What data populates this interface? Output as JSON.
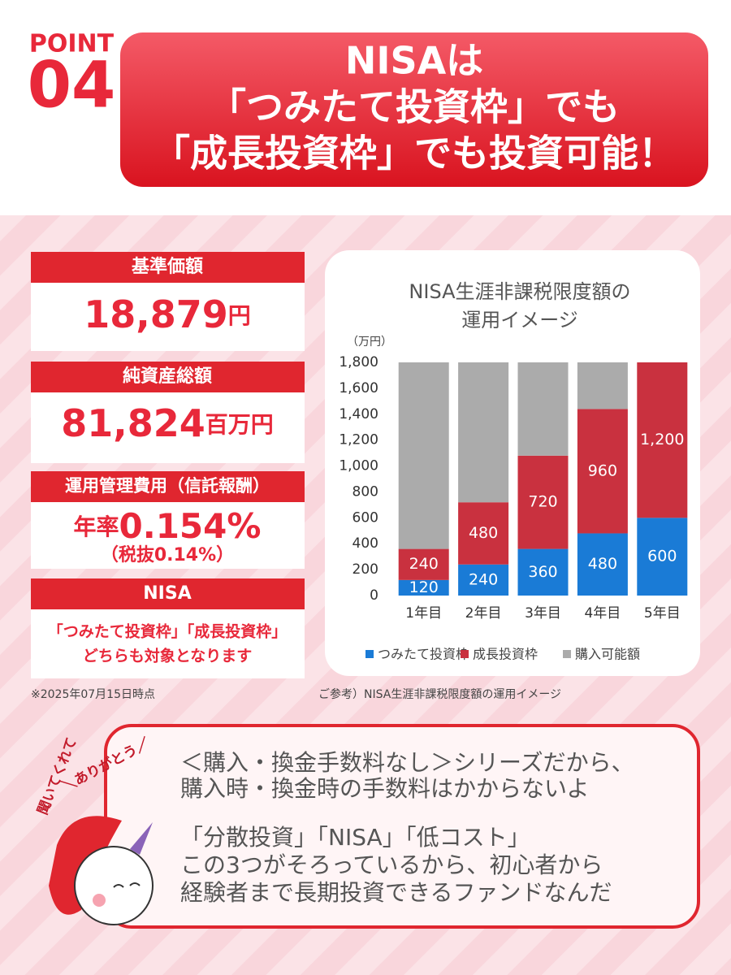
{
  "header": {
    "point": "POINT",
    "number": "04",
    "title": [
      "NISAは",
      "「つみたて投資枠」でも",
      "「成長投資枠」でも投資可能！"
    ]
  },
  "cards": [
    {
      "label": "基準価額",
      "value": "18,879",
      "unit": "円"
    },
    {
      "label": "純資産総額",
      "value": "81,824",
      "unit": "百万円"
    },
    {
      "label": "運用管理費用（信託報酬）",
      "value_prefix": "年率",
      "value": "0.154%",
      "sub": "（税抜0.14%）"
    },
    {
      "label": "NISA",
      "lines": [
        "「つみたて投資枠」「成長投資枠」",
        "どちらも対象となります"
      ]
    }
  ],
  "notes": {
    "date": "※2025年07月15日時点",
    "chart_source": "ご参考）NISA生涯非課税限度額の運用イメージ"
  },
  "chart_data": {
    "type": "bar",
    "stacked": true,
    "title": [
      "NISA生涯非課税限度額の",
      "運用イメージ"
    ],
    "unit_label": "（万円）",
    "categories": [
      "1年目",
      "2年目",
      "3年目",
      "4年目",
      "5年目"
    ],
    "series": [
      {
        "name": "つみたて投資枠",
        "color": "#1a7bd6",
        "values": [
          120,
          240,
          360,
          480,
          600
        ]
      },
      {
        "name": "成長投資枠",
        "color": "#c9313f",
        "values": [
          240,
          480,
          720,
          960,
          1200
        ],
        "value_labels": [
          "240",
          "480",
          "720",
          "960",
          "1,200"
        ]
      },
      {
        "name": "購入可能額",
        "color": "#ababab",
        "values": [
          1440,
          1080,
          720,
          360,
          0
        ]
      }
    ],
    "ylim": [
      0,
      1800
    ],
    "yticks": [
      0,
      200,
      400,
      600,
      800,
      {
        "value": 1000,
        "label": "1,000"
      },
      {
        "value": 1200,
        "label": "1,200"
      },
      {
        "value": 1400,
        "label": "1,400"
      },
      {
        "value": 1600,
        "label": "1,600"
      },
      {
        "value": 1800,
        "label": "1,800"
      }
    ],
    "grid": false,
    "legend": "bottom"
  },
  "message": {
    "lines": [
      "＜購入・換金手数料なし＞シリーズだから、",
      "購入時・換金時の手数料はかからないよ",
      "「分散投資」「NISA」「低コスト」",
      "この3つがそろっているから、初心者から",
      "経験者まで長期投資できるファンドなんだ"
    ]
  },
  "mascot": {
    "speech": [
      "＼ありがとう／",
      "聞いてくれて"
    ]
  }
}
